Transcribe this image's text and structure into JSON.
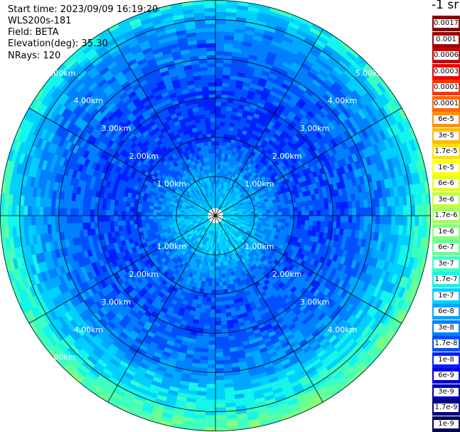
{
  "info": {
    "start_time": "Start time: 2023/09/09 16:19:20",
    "instrument": "WLS200s-181",
    "field": "Field: BETA",
    "elevation": "Elevation(deg): 35.30",
    "nrays": "NRays: 120"
  },
  "colorbar": {
    "unit_label": "-1 sr",
    "entries": [
      {
        "label": "0.0017",
        "color": "#8b0000",
        "text_color": "#000000"
      },
      {
        "label": "0.001",
        "color": "#9e0000",
        "text_color": "#000000"
      },
      {
        "label": "0.0006",
        "color": "#c80000",
        "text_color": "#000000"
      },
      {
        "label": "0.0003",
        "color": "#ee0000",
        "text_color": "#000000"
      },
      {
        "label": "0.00017",
        "color": "#ff3300",
        "text_color": "#000000"
      },
      {
        "label": "0.0001",
        "color": "#ff6600",
        "text_color": "#000000"
      },
      {
        "label": "6e-5",
        "color": "#ff9200",
        "text_color": "#000000"
      },
      {
        "label": "3e-5",
        "color": "#ffbb00",
        "text_color": "#000000"
      },
      {
        "label": "1.7e-5",
        "color": "#ffe000",
        "text_color": "#000000"
      },
      {
        "label": "1e-5",
        "color": "#ffff00",
        "text_color": "#000000"
      },
      {
        "label": "6e-6",
        "color": "#e0ff1f",
        "text_color": "#000000"
      },
      {
        "label": "3e-6",
        "color": "#c2ff3d",
        "text_color": "#000000"
      },
      {
        "label": "1.7e-6",
        "color": "#a3ff5c",
        "text_color": "#000000"
      },
      {
        "label": "1e-6",
        "color": "#85ff7a",
        "text_color": "#000000"
      },
      {
        "label": "6e-7",
        "color": "#66ff99",
        "text_color": "#000000"
      },
      {
        "label": "3e-7",
        "color": "#3dffc2",
        "text_color": "#000000"
      },
      {
        "label": "1.7e-7",
        "color": "#14f5eb",
        "text_color": "#000000"
      },
      {
        "label": "1e-7",
        "color": "#00d0ff",
        "text_color": "#000000"
      },
      {
        "label": "6e-8",
        "color": "#00a8ff",
        "text_color": "#000000"
      },
      {
        "label": "3e-8",
        "color": "#0080ff",
        "text_color": "#000000"
      },
      {
        "label": "1.7e-8",
        "color": "#0050ff",
        "text_color": "#ffffff"
      },
      {
        "label": "1e-8",
        "color": "#0020ff",
        "text_color": "#ffffff"
      },
      {
        "label": "6e-9",
        "color": "#0000e0",
        "text_color": "#ffffff"
      },
      {
        "label": "3e-9",
        "color": "#0000b0",
        "text_color": "#ffffff"
      },
      {
        "label": "1.7e-9",
        "color": "#000080",
        "text_color": "#ffffff"
      },
      {
        "label": "1e-9",
        "color": "#00005a",
        "text_color": "#ffffff"
      }
    ]
  },
  "chart_data": {
    "type": "heatmap",
    "projection": "polar",
    "field": "BETA",
    "elevation_deg": 35.3,
    "nrays": 120,
    "max_range_km": 5.5,
    "range_rings_km": [
      1,
      2,
      3,
      4,
      5
    ],
    "spoke_interval_deg": 30,
    "ring_labels": [
      {
        "text": "1.00km",
        "ring_km": 1
      },
      {
        "text": "2.00km",
        "ring_km": 2
      },
      {
        "text": "3.00km",
        "ring_km": 3
      },
      {
        "text": "4.00km",
        "ring_km": 4
      },
      {
        "text": "5.00km",
        "ring_km": 5
      },
      {
        "text": "5.00km",
        "ring_km": 5
      }
    ],
    "label_color": "#ffffff",
    "approx_beta_by_range": {
      "range_km": [
        0.3,
        1.0,
        2.0,
        3.0,
        4.0,
        5.0,
        5.4
      ],
      "beta": [
        1e-07,
        6e-08,
        1.7e-08,
        1.7e-08,
        3e-08,
        1e-07,
        3e-07
      ]
    }
  }
}
